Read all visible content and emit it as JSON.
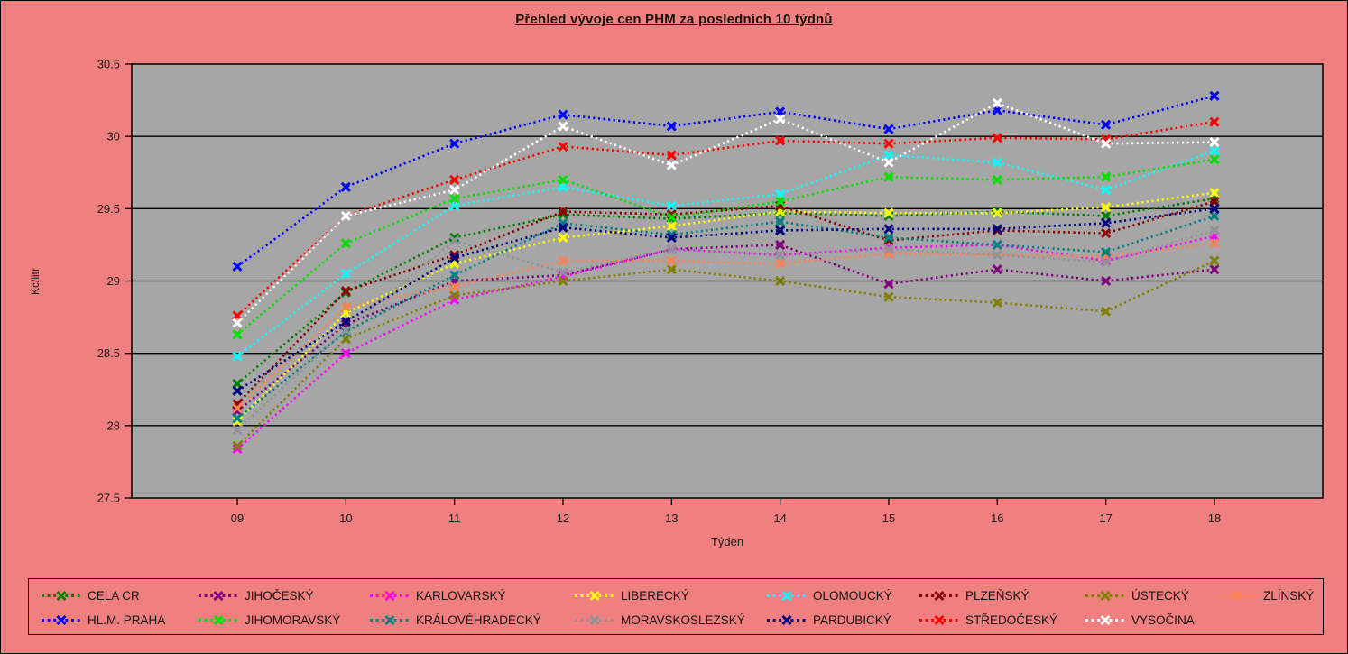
{
  "page": {
    "background": "#F08080",
    "plot_background": "#A6A6A6",
    "border_color": "#000000"
  },
  "chart_data": {
    "type": "line",
    "title": "Přehled vývoje cen PHM za posledních 10 týdnů",
    "xlabel": "Týden",
    "ylabel": "Kč/litr",
    "x_categories": [
      "09",
      "10",
      "11",
      "12",
      "13",
      "14",
      "15",
      "16",
      "17",
      "18"
    ],
    "ylim": [
      27.5,
      30.5
    ],
    "yticks": [
      30.5,
      30,
      29.5,
      29,
      28.5,
      28,
      27.5
    ],
    "grid": true,
    "line_style": "dotted",
    "marker": "x",
    "legend_position": "bottom",
    "legend_row_split": 8,
    "series": [
      {
        "name": "CELA CR",
        "color": "#008000",
        "values": [
          28.29,
          28.92,
          29.3,
          29.46,
          29.43,
          29.47,
          29.45,
          29.48,
          29.45,
          29.57
        ]
      },
      {
        "name": "JIHOČESKÝ",
        "color": "#800080",
        "values": [
          28.1,
          28.7,
          29.0,
          29.04,
          29.22,
          29.25,
          28.98,
          29.08,
          29.0,
          29.08
        ]
      },
      {
        "name": "KARLOVARSKÝ",
        "color": "#FF00FF",
        "values": [
          27.84,
          28.5,
          28.87,
          29.03,
          29.22,
          29.18,
          29.23,
          29.25,
          29.14,
          29.31
        ]
      },
      {
        "name": "LIBERECKÝ",
        "color": "#FFFF00",
        "values": [
          28.03,
          28.78,
          29.12,
          29.3,
          29.38,
          29.48,
          29.47,
          29.47,
          29.51,
          29.61
        ]
      },
      {
        "name": "OLOMOUCKÝ",
        "color": "#00FFFF",
        "values": [
          28.48,
          29.05,
          29.52,
          29.65,
          29.52,
          29.6,
          29.87,
          29.82,
          29.63,
          29.9
        ]
      },
      {
        "name": "PLZEŇSKÝ",
        "color": "#8B0000",
        "values": [
          28.15,
          28.93,
          29.18,
          29.48,
          29.46,
          29.52,
          29.28,
          29.35,
          29.33,
          29.55
        ]
      },
      {
        "name": "ÚSTECKÝ",
        "color": "#808000",
        "values": [
          27.86,
          28.6,
          28.9,
          29.0,
          29.08,
          29.0,
          28.89,
          28.85,
          28.79,
          29.14
        ]
      },
      {
        "name": "ZLÍNSKÝ",
        "color": "#FF8050",
        "values": [
          28.12,
          28.82,
          28.96,
          29.14,
          29.14,
          29.12,
          29.19,
          29.18,
          29.17,
          29.26
        ]
      },
      {
        "name": "HL.M. PRAHA",
        "color": "#0000FF",
        "values": [
          29.1,
          29.65,
          29.95,
          30.15,
          30.07,
          30.17,
          30.05,
          30.18,
          30.08,
          30.28
        ]
      },
      {
        "name": "JIHOMORAVSKÝ",
        "color": "#00E000",
        "values": [
          28.63,
          29.26,
          29.57,
          29.7,
          29.44,
          29.55,
          29.72,
          29.7,
          29.72,
          29.84
        ]
      },
      {
        "name": "KRÁLOVÉHRADECKÝ",
        "color": "#008080",
        "values": [
          28.05,
          28.65,
          29.04,
          29.4,
          29.32,
          29.41,
          29.3,
          29.25,
          29.2,
          29.45
        ]
      },
      {
        "name": "MORAVSKOSLEZSKÝ",
        "color": "#92929A",
        "values": [
          27.97,
          28.66,
          29.28,
          29.06,
          29.22,
          29.18,
          29.22,
          29.18,
          29.13,
          29.35
        ]
      },
      {
        "name": "PARDUBICKÝ",
        "color": "#000080",
        "values": [
          28.24,
          28.72,
          29.16,
          29.37,
          29.3,
          29.35,
          29.36,
          29.36,
          29.4,
          29.5
        ]
      },
      {
        "name": "STŘEDOČESKÝ",
        "color": "#FF0000",
        "values": [
          28.76,
          29.45,
          29.7,
          29.93,
          29.87,
          29.97,
          29.95,
          29.99,
          29.98,
          30.1
        ]
      },
      {
        "name": "VYSOČINA",
        "color": "#FFFFFF",
        "values": [
          28.71,
          29.45,
          29.63,
          30.07,
          29.8,
          30.12,
          29.82,
          30.23,
          29.95,
          29.96
        ]
      }
    ]
  }
}
